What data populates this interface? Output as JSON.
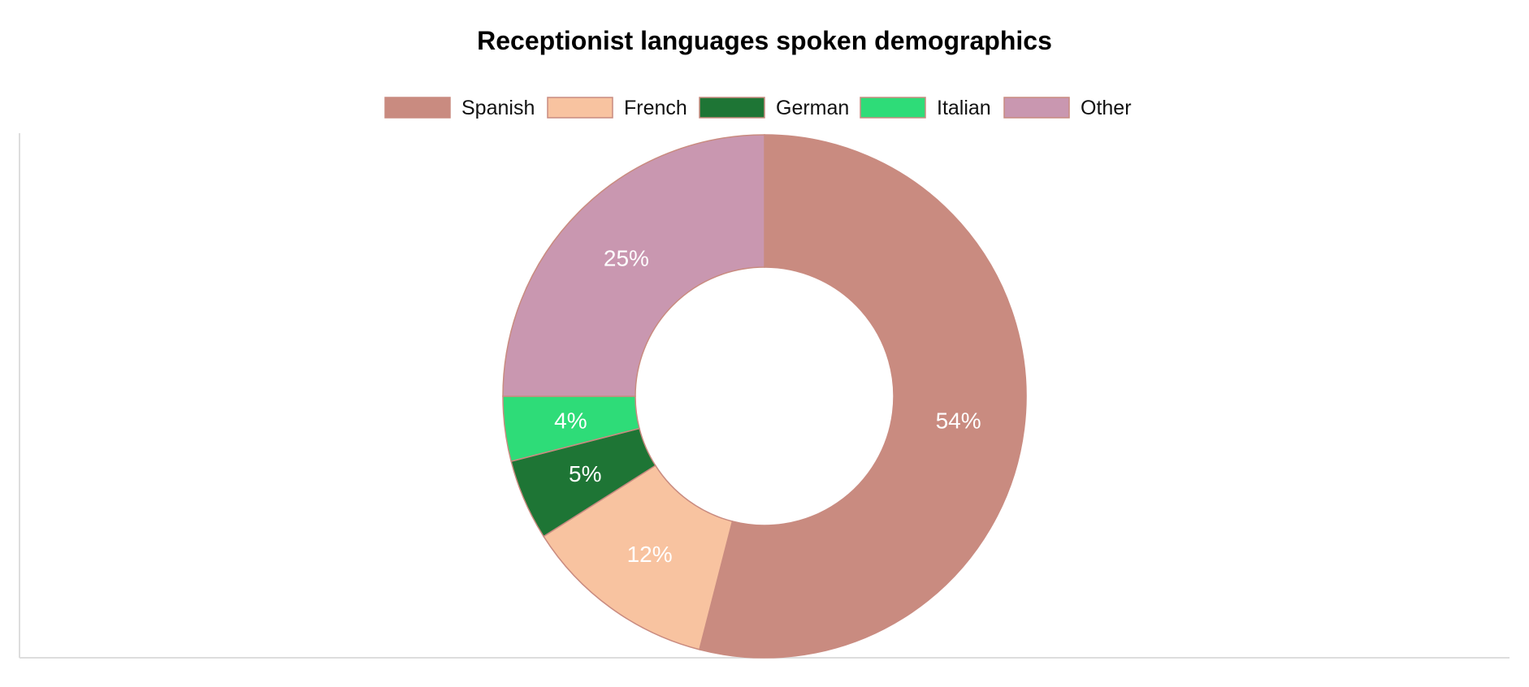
{
  "chart_data": {
    "type": "pie",
    "variant": "donut",
    "title": "Receptionist languages spoken demographics",
    "legend_position": "top",
    "categories": [
      "Spanish",
      "French",
      "German",
      "Italian",
      "Other"
    ],
    "values": [
      54,
      12,
      5,
      4,
      25
    ],
    "labels": [
      "54%",
      "12%",
      "5%",
      "4%",
      "25%"
    ],
    "colors": [
      "#c98b80",
      "#f8c3a0",
      "#1e7535",
      "#2edc78",
      "#c997b0"
    ],
    "slice_border_color": "#c98b80"
  }
}
